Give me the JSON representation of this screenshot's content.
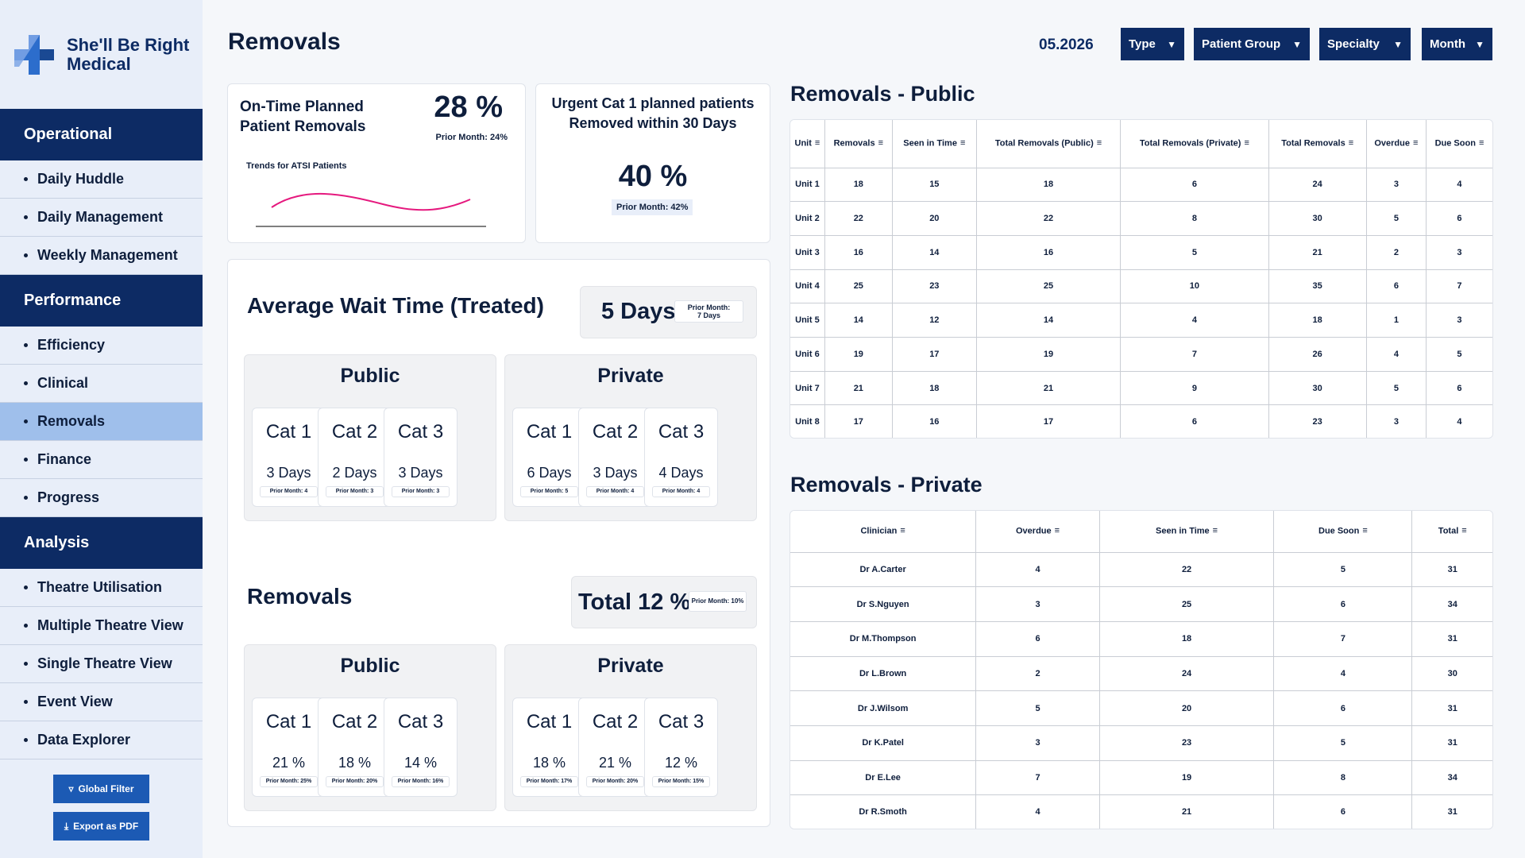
{
  "brand": {
    "name_line1": "She'll Be Right",
    "name_line2": "Medical"
  },
  "sidebar": {
    "sections": [
      {
        "title": "Operational",
        "items": [
          "Daily Huddle",
          "Daily Management",
          "Weekly Management"
        ]
      },
      {
        "title": "Performance",
        "items": [
          "Efficiency",
          "Clinical",
          "Removals",
          "Finance",
          "Progress"
        ]
      },
      {
        "title": "Analysis",
        "items": [
          "Theatre Utilisation",
          "Multiple Theatre View",
          "Single Theatre View",
          "Event View",
          "Data Explorer"
        ]
      }
    ],
    "active_item": "Removals",
    "global_filter": "Global Filter",
    "export_pdf": "Export as PDF"
  },
  "header": {
    "title": "Removals",
    "date": "05.2026",
    "filters": [
      "Type",
      "Patient Group",
      "Specialty",
      "Month"
    ]
  },
  "kpi_ontime": {
    "title_line1": "On-Time Planned",
    "title_line2": "Patient Removals",
    "value": "28 %",
    "prior": "Prior Month: 24%",
    "trend_label": "Trends for ATSI Patients",
    "accent_color": "#e5197e"
  },
  "kpi_urgent": {
    "title_line1": "Urgent Cat 1 planned patients",
    "title_line2": "Removed within 30 Days",
    "value": "40 %",
    "prior": "Prior Month: 42%"
  },
  "wait_time": {
    "title": "Average Wait Time (Treated)",
    "total": "5 Days",
    "total_prior_line1": "Prior Month:",
    "total_prior_line2": "7 Days",
    "public": {
      "title": "Public",
      "cats": [
        {
          "name": "Cat 1",
          "value": "3 Days",
          "prior": "Prior Month: 4"
        },
        {
          "name": "Cat 2",
          "value": "2 Days",
          "prior": "Prior Month: 3"
        },
        {
          "name": "Cat 3",
          "value": "3 Days",
          "prior": "Prior Month: 3"
        }
      ]
    },
    "private": {
      "title": "Private",
      "cats": [
        {
          "name": "Cat 1",
          "value": "6 Days",
          "prior": "Prior Month: 5"
        },
        {
          "name": "Cat 2",
          "value": "3 Days",
          "prior": "Prior Month: 4"
        },
        {
          "name": "Cat 3",
          "value": "4 Days",
          "prior": "Prior Month: 4"
        }
      ]
    }
  },
  "removals": {
    "title": "Removals",
    "total": "Total 12 %",
    "total_prior": "Prior Month: 10%",
    "public": {
      "title": "Public",
      "cats": [
        {
          "name": "Cat 1",
          "value": "21 %",
          "prior": "Prior Month: 25%"
        },
        {
          "name": "Cat 2",
          "value": "18 %",
          "prior": "Prior Month: 20%"
        },
        {
          "name": "Cat 3",
          "value": "14 %",
          "prior": "Prior Month: 16%"
        }
      ]
    },
    "private": {
      "title": "Private",
      "cats": [
        {
          "name": "Cat 1",
          "value": "18 %",
          "prior": "Prior Month: 17%"
        },
        {
          "name": "Cat 2",
          "value": "21 %",
          "prior": "Prior Month: 20%"
        },
        {
          "name": "Cat 3",
          "value": "12 %",
          "prior": "Prior Month: 15%"
        }
      ]
    }
  },
  "public_table": {
    "title": "Removals - Public",
    "columns": [
      "Unit",
      "Removals",
      "Seen in Time",
      "Total Removals (Public)",
      "Total Removals (Private)",
      "Total Removals",
      "Overdue",
      "Due Soon"
    ],
    "rows": [
      [
        "Unit 1",
        "18",
        "15",
        "18",
        "6",
        "24",
        "3",
        "4"
      ],
      [
        "Unit 2",
        "22",
        "20",
        "22",
        "8",
        "30",
        "5",
        "6"
      ],
      [
        "Unit 3",
        "16",
        "14",
        "16",
        "5",
        "21",
        "2",
        "3"
      ],
      [
        "Unit 4",
        "25",
        "23",
        "25",
        "10",
        "35",
        "6",
        "7"
      ],
      [
        "Unit 5",
        "14",
        "12",
        "14",
        "4",
        "18",
        "1",
        "3"
      ],
      [
        "Unit 6",
        "19",
        "17",
        "19",
        "7",
        "26",
        "4",
        "5"
      ],
      [
        "Unit 7",
        "21",
        "18",
        "21",
        "9",
        "30",
        "5",
        "6"
      ],
      [
        "Unit 8",
        "17",
        "16",
        "17",
        "6",
        "23",
        "3",
        "4"
      ]
    ]
  },
  "private_table": {
    "title": "Removals - Private",
    "columns": [
      "Clinician",
      "Overdue",
      "Seen in Time",
      "Due Soon",
      "Total"
    ],
    "rows": [
      [
        "Dr A.Carter",
        "4",
        "22",
        "5",
        "31"
      ],
      [
        "Dr S.Nguyen",
        "3",
        "25",
        "6",
        "34"
      ],
      [
        "Dr M.Thompson",
        "6",
        "18",
        "7",
        "31"
      ],
      [
        "Dr L.Brown",
        "2",
        "24",
        "4",
        "30"
      ],
      [
        "Dr J.Wilsom",
        "5",
        "20",
        "6",
        "31"
      ],
      [
        "Dr K.Patel",
        "3",
        "23",
        "5",
        "31"
      ],
      [
        "Dr E.Lee",
        "7",
        "19",
        "8",
        "34"
      ],
      [
        "Dr R.Smoth",
        "4",
        "21",
        "6",
        "31"
      ]
    ]
  }
}
